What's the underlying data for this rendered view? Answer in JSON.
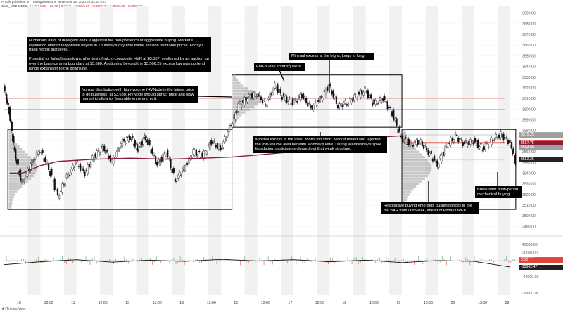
{
  "header": {
    "publisher_line": "Phyzik published on TradingView.com, November 22, 2020 22:33:53 EST",
    "symbol_line": "CME_MINI:MES1!, 15",
    "ohlc": [
      "3554.25",
      "-25.75 (-0.72%)",
      "O:3555.25",
      "H:3556.75",
      "L:3553.00",
      "C:3554.25"
    ]
  },
  "footer": {
    "brand": "TradingView"
  },
  "price_tags": [
    {
      "label": "3576.00",
      "price": 3576,
      "color": "#ababab"
    },
    {
      "label": "3575.25",
      "price": 3575.25,
      "color": "#9e9e9e"
    },
    {
      "label": "3569.00",
      "price": 3569,
      "color": "#e0443b"
    },
    {
      "label": "3567.75",
      "price": 3567.75,
      "color": "#8b1c3b"
    },
    {
      "label": "3564.00",
      "price": 3564,
      "color": "#9e9e9e"
    },
    {
      "label": "3552.25",
      "price": 3552.25,
      "color": "#222222"
    }
  ],
  "indicator_tags": [
    {
      "label": "2555.00",
      "value": 2555,
      "color": "#3aa05a"
    },
    {
      "label": "15.00",
      "value": 15,
      "color": "#2a7be4"
    },
    {
      "label": "0.00",
      "value": 0,
      "color": "#e0443b"
    },
    {
      "label": "-15962.47",
      "value": -15962.47,
      "color": "#222222"
    }
  ],
  "annotations": [
    {
      "id": "divergent-delta",
      "text": "Numerous days of divergent delta suggested the non-presence of aggressive buying. Market's liquidation offered responsive buyers in Thursday's day time frame session favorable prices. Friday's trade retook that level.\n\nPotential for failed breakdown, after test of micro-composite HVN at $3,557, confirmed by an auction up over the balance area boundary at $3,580. Auctioning beyond the $3,506.25 excess low may portend range expansion to the downside."
    },
    {
      "id": "minimal-excess-highs",
      "text": "Minimal excess at the highs; longs to long."
    },
    {
      "id": "end-of-day-squeeze",
      "text": "End-of-day short squeeze."
    },
    {
      "id": "normal-distribution",
      "text": "Normal distribution with high-volume (HVNode is the fairest price to do business) at $3,680. HVNode should attract price and slow market to allow for favorable entry and exit."
    },
    {
      "id": "minimal-excess-lows",
      "text": "Minimal excess at the lows; shorts too short. Market tested and rejected the low-volume area beneath Monday's lows. During Wednesday's spike liquidation, participants cleared out that weak structure."
    },
    {
      "id": "responsive-buying",
      "text": "Responsive buying emerged, pushing prices to the the BAH from last week, ahead of Friday OPEX."
    },
    {
      "id": "break-after-multi-period",
      "text": "Break after multi-period mechanical buying."
    }
  ],
  "chart_data": [
    {
      "type": "candlestick",
      "title": "",
      "timeframe": "15",
      "x_tick_labels": [
        "10",
        "12:00",
        "11",
        "12:00",
        "12",
        "12:00",
        "13",
        "12:00",
        "16",
        "12:00",
        "17",
        "12:00",
        "18",
        "12:00",
        "19",
        "12:00",
        "20",
        "12:00",
        "23"
      ],
      "y_tick_labels": [
        "3690.00",
        "3680.00",
        "3670.00",
        "3660.00",
        "3650.00",
        "3640.00",
        "3630.00",
        "3620.00",
        "3610.00",
        "3600.00",
        "3590.00",
        "3580.00",
        "3570.00",
        "3560.00",
        "3550.00",
        "3540.00",
        "3530.00",
        "3520.00",
        "3510.00",
        "3500.00",
        "3490.00"
      ],
      "ylim": [
        3485,
        3697
      ],
      "close_series": [
        {
          "x": 0,
          "y": 3620
        },
        {
          "x": 0.3,
          "y": 3598
        },
        {
          "x": 0.6,
          "y": 3560
        },
        {
          "x": 1,
          "y": 3530
        },
        {
          "x": 1.5,
          "y": 3548
        },
        {
          "x": 2,
          "y": 3562
        },
        {
          "x": 2.5,
          "y": 3545
        },
        {
          "x": 3,
          "y": 3518
        },
        {
          "x": 3.5,
          "y": 3536
        },
        {
          "x": 4,
          "y": 3550
        },
        {
          "x": 4.5,
          "y": 3540
        },
        {
          "x": 5,
          "y": 3556
        },
        {
          "x": 5.5,
          "y": 3565
        },
        {
          "x": 6,
          "y": 3550
        },
        {
          "x": 6.5,
          "y": 3568
        },
        {
          "x": 7,
          "y": 3574
        },
        {
          "x": 7.4,
          "y": 3562
        },
        {
          "x": 7.8,
          "y": 3573
        },
        {
          "x": 8,
          "y": 3568
        },
        {
          "x": 8.5,
          "y": 3548
        },
        {
          "x": 9,
          "y": 3560
        },
        {
          "x": 9.5,
          "y": 3533
        },
        {
          "x": 10,
          "y": 3545
        },
        {
          "x": 10.5,
          "y": 3560
        },
        {
          "x": 11,
          "y": 3556
        },
        {
          "x": 11.5,
          "y": 3570
        },
        {
          "x": 12,
          "y": 3562
        },
        {
          "x": 12.5,
          "y": 3582
        },
        {
          "x": 13,
          "y": 3603
        },
        {
          "x": 13.5,
          "y": 3611
        },
        {
          "x": 14,
          "y": 3615
        },
        {
          "x": 14.5,
          "y": 3604
        },
        {
          "x": 15,
          "y": 3622
        },
        {
          "x": 15.5,
          "y": 3610
        },
        {
          "x": 16,
          "y": 3606
        },
        {
          "x": 16.5,
          "y": 3613
        },
        {
          "x": 17,
          "y": 3601
        },
        {
          "x": 17.5,
          "y": 3609
        },
        {
          "x": 18,
          "y": 3622
        },
        {
          "x": 18.5,
          "y": 3603
        },
        {
          "x": 19,
          "y": 3606
        },
        {
          "x": 19.5,
          "y": 3612
        },
        {
          "x": 20,
          "y": 3618
        },
        {
          "x": 20.5,
          "y": 3604
        },
        {
          "x": 21,
          "y": 3610
        },
        {
          "x": 21.5,
          "y": 3596
        },
        {
          "x": 22,
          "y": 3573
        },
        {
          "x": 22.5,
          "y": 3567
        },
        {
          "x": 23,
          "y": 3570
        },
        {
          "x": 23.5,
          "y": 3560
        },
        {
          "x": 24,
          "y": 3548
        },
        {
          "x": 24.5,
          "y": 3565
        },
        {
          "x": 25,
          "y": 3575
        },
        {
          "x": 25.5,
          "y": 3567
        },
        {
          "x": 26,
          "y": 3570
        },
        {
          "x": 26.5,
          "y": 3563
        },
        {
          "x": 27,
          "y": 3571
        },
        {
          "x": 27.5,
          "y": 3576
        },
        {
          "x": 28,
          "y": 3569
        },
        {
          "x": 28.3,
          "y": 3552
        }
      ],
      "vwap_series": [
        {
          "x": 0.3,
          "y": 3540
        },
        {
          "x": 1,
          "y": 3540
        },
        {
          "x": 2,
          "y": 3547
        },
        {
          "x": 3,
          "y": 3551
        },
        {
          "x": 5,
          "y": 3553
        },
        {
          "x": 7,
          "y": 3554
        },
        {
          "x": 9,
          "y": 3553
        },
        {
          "x": 11,
          "y": 3554
        },
        {
          "x": 12.5,
          "y": 3555
        },
        {
          "x": 14,
          "y": 3557
        },
        {
          "x": 16,
          "y": 3560
        },
        {
          "x": 18,
          "y": 3565
        },
        {
          "x": 19.5,
          "y": 3570
        },
        {
          "x": 21,
          "y": 3574
        },
        {
          "x": 22,
          "y": 3575
        }
      ],
      "horizontal_levels": [
        3610,
        3600,
        3576,
        3575.25,
        3569,
        3567.75,
        3564,
        3552.25
      ],
      "balance_area_boxes": [
        {
          "x": [
            0.2,
            12.6
          ],
          "y": [
            3506,
            3581
          ]
        },
        {
          "x": [
            12.6,
            22.0
          ],
          "y": [
            3583,
            3632
          ]
        },
        {
          "x": [
            22.0,
            28.3
          ],
          "y": [
            3506,
            3581
          ]
        }
      ]
    },
    {
      "type": "line",
      "title": "",
      "y_tick_labels": [
        "40000.00",
        "20000.00",
        "0.00",
        "-20000.00",
        "-40000.00",
        "-80000.00"
      ],
      "ylim": [
        -85000,
        50000
      ],
      "series": [
        {
          "x": 0,
          "y": -10000
        },
        {
          "x": 2,
          "y": -3000
        },
        {
          "x": 4,
          "y": 2000
        },
        {
          "x": 6,
          "y": -4000
        },
        {
          "x": 8,
          "y": 1000
        },
        {
          "x": 10,
          "y": -2000
        },
        {
          "x": 12,
          "y": 3000
        },
        {
          "x": 14,
          "y": -1000
        },
        {
          "x": 16,
          "y": 2000
        },
        {
          "x": 18,
          "y": -3000
        },
        {
          "x": 20,
          "y": 1000
        },
        {
          "x": 22,
          "y": -5000
        },
        {
          "x": 24,
          "y": 0
        },
        {
          "x": 26,
          "y": -2000
        },
        {
          "x": 28,
          "y": -15962
        }
      ]
    }
  ]
}
